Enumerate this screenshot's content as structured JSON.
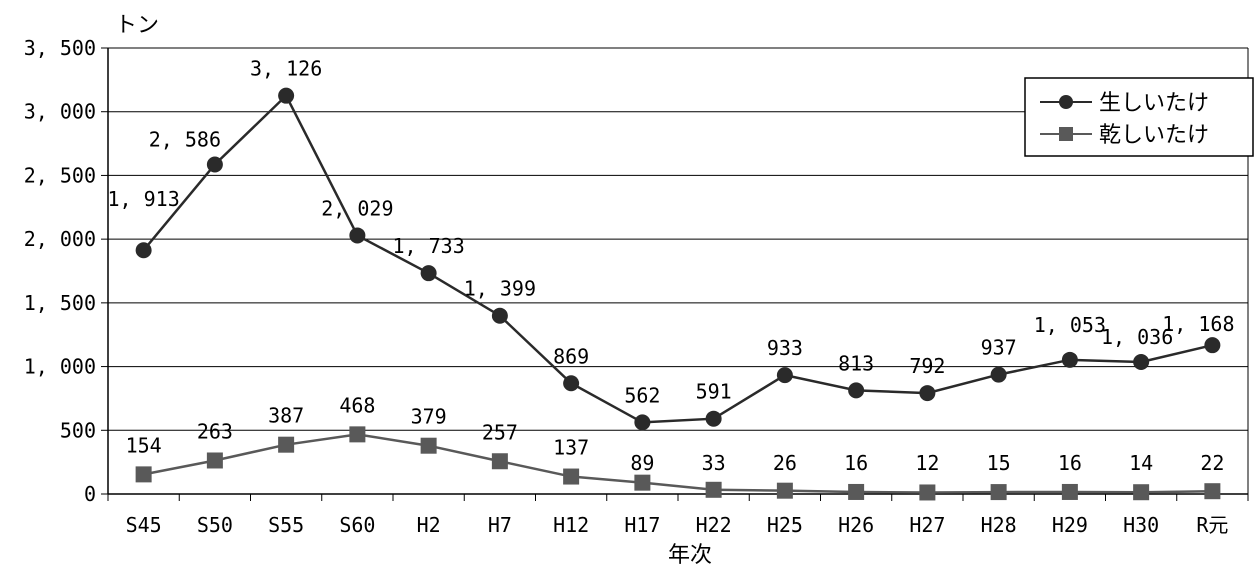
{
  "chart_data": {
    "type": "line",
    "title": "",
    "ylabel": "トン",
    "xlabel": "年次",
    "ylim": [
      0,
      3500
    ],
    "yticks": [
      "0",
      "500",
      "1, 000",
      "1, 500",
      "2, 000",
      "2, 500",
      "3, 000",
      "3, 500"
    ],
    "categories": [
      "S45",
      "S50",
      "S55",
      "S60",
      "H2",
      "H7",
      "H12",
      "H17",
      "H22",
      "H25",
      "H26",
      "H27",
      "H28",
      "H29",
      "H30",
      "R元"
    ],
    "grid": "horizontal",
    "legend_position": "top-right",
    "series": [
      {
        "name": "生しいたけ",
        "marker": "circle",
        "color": "#2a2a2a",
        "values": [
          1913,
          2586,
          3126,
          2029,
          1733,
          1399,
          869,
          562,
          591,
          933,
          813,
          792,
          937,
          1053,
          1036,
          1168
        ],
        "labels": [
          "1, 913",
          "2, 586",
          "3, 126",
          "2, 029",
          "1, 733",
          "1, 399",
          "869",
          "562",
          "591",
          "933",
          "813",
          "792",
          "937",
          "1, 053",
          "1, 036",
          "1, 168"
        ]
      },
      {
        "name": "乾しいたけ",
        "marker": "square",
        "color": "#595959",
        "values": [
          154,
          263,
          387,
          468,
          379,
          257,
          137,
          89,
          33,
          26,
          16,
          12,
          15,
          16,
          14,
          22
        ],
        "labels": [
          "154",
          "263",
          "387",
          "468",
          "379",
          "257",
          "137",
          "89",
          "33",
          "26",
          "16",
          "12",
          "15",
          "16",
          "14",
          "22"
        ]
      }
    ]
  }
}
